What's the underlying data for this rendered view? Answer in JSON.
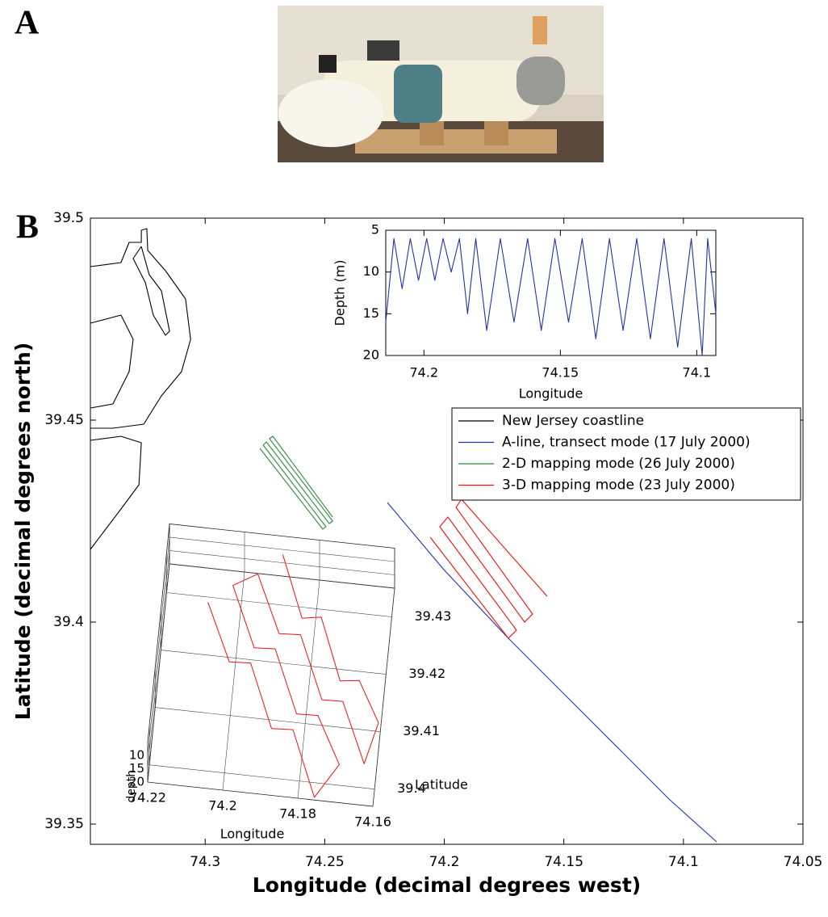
{
  "panels": {
    "a": "A",
    "b": "B"
  },
  "chart_data": [
    {
      "type": "line",
      "xlabel": "Longitude (decimal degrees west)",
      "ylabel": "Latitude (decimal degrees north)",
      "xlim": [
        74.348,
        74.05
      ],
      "ylim": [
        39.345,
        39.5
      ],
      "xticks": [
        74.3,
        74.25,
        74.2,
        74.15,
        74.1,
        74.05
      ],
      "yticks": [
        39.35,
        39.4,
        39.45,
        39.5
      ],
      "legend": "upper right",
      "series": [
        {
          "name": "New Jersey coastline",
          "color": "#000000",
          "x": [
            74.348,
            74.3352,
            74.3318,
            74.3267,
            74.3267,
            74.3244,
            74.324,
            74.3166,
            74.3082,
            74.3061,
            74.3099,
            74.3183,
            74.3257,
            74.3386,
            74.348,
            null,
            74.3267,
            74.3234,
            74.3183,
            74.3149,
            74.3166,
            74.3217,
            74.325,
            74.3301,
            74.3267,
            null,
            74.348,
            74.3352,
            74.3301,
            74.3318,
            74.3386,
            74.348,
            null,
            74.348,
            74.3352,
            74.3267,
            74.3277,
            74.3352,
            74.348
          ],
          "y": [
            39.488,
            39.489,
            39.494,
            39.494,
            39.497,
            39.4974,
            39.492,
            39.487,
            39.48,
            39.47,
            39.462,
            39.456,
            39.449,
            39.448,
            39.448,
            null,
            39.493,
            39.486,
            39.482,
            39.472,
            39.471,
            39.476,
            39.484,
            39.49,
            39.493,
            null,
            39.474,
            39.476,
            39.47,
            39.462,
            39.454,
            39.453,
            null,
            39.445,
            39.446,
            39.4444,
            39.434,
            39.428,
            39.418
          ]
        },
        {
          "name": "A-line, transect mode (17 July 2000)",
          "color": "#2233aa",
          "x": [
            74.2238,
            74.2002,
            74.1732,
            74.1496,
            74.1259,
            74.1057,
            74.0861
          ],
          "y": [
            39.4296,
            39.413,
            39.396,
            39.382,
            39.368,
            39.356,
            39.3456
          ]
        },
        {
          "name": "2-D mapping mode (26 July 2000)",
          "color": "#2e8b3e",
          "x": [
            74.2771,
            74.2508,
            74.2495,
            74.2757,
            74.2744,
            74.2481,
            74.2467,
            74.2731,
            74.2717,
            74.2467
          ],
          "y": [
            39.443,
            39.423,
            39.4236,
            39.4438,
            39.4446,
            39.4244,
            39.425,
            39.4454,
            39.446,
            39.426
          ]
        },
        {
          "name": "3-D mapping mode (23 July 2000)",
          "color": "#ee1111",
          "x": [
            74.2059,
            74.1732,
            74.1698,
            74.2019,
            74.1985,
            74.1664,
            74.1631,
            74.1951,
            74.1928,
            74.157
          ],
          "y": [
            39.421,
            39.396,
            39.398,
            39.4236,
            39.426,
            39.4,
            39.402,
            39.4284,
            39.4304,
            39.4064
          ]
        }
      ]
    },
    {
      "type": "line",
      "xlabel": "Longitude",
      "ylabel": "Depth (m)",
      "xlim": [
        74.214,
        74.093
      ],
      "ylim": [
        20,
        5
      ],
      "xticks": [
        74.2,
        74.15,
        74.1
      ],
      "yticks": [
        5,
        10,
        15,
        20
      ],
      "series": [
        {
          "color": "#2233aa",
          "x": [
            74.214,
            74.211,
            74.208,
            74.205,
            74.202,
            74.199,
            74.196,
            74.193,
            74.19,
            74.187,
            74.184,
            74.181,
            74.177,
            74.172,
            74.167,
            74.162,
            74.157,
            74.152,
            74.147,
            74.142,
            74.137,
            74.132,
            74.127,
            74.122,
            74.117,
            74.112,
            74.107,
            74.102,
            74.098,
            74.096,
            74.093
          ],
          "y": [
            16,
            6,
            12,
            6,
            11,
            6,
            11,
            6,
            10,
            6,
            15,
            6,
            17,
            6,
            16,
            6,
            17,
            6,
            16,
            6,
            18,
            6,
            17,
            6,
            18,
            6,
            19,
            6,
            20,
            6,
            15
          ]
        }
      ]
    },
    {
      "type": "line3d",
      "xlabel": "Longitude",
      "ylabel": "Latitude",
      "zlabel": "depth",
      "xlim": [
        74.22,
        74.16
      ],
      "ylim": [
        39.397,
        39.435
      ],
      "zlim": [
        20,
        5
      ],
      "xticks": [
        74.22,
        74.2,
        74.18,
        74.16
      ],
      "yticks": [
        39.4,
        39.41,
        39.42,
        39.43
      ],
      "zticks": [
        10,
        15,
        20
      ],
      "series": [
        {
          "color": "#ee1111",
          "x": [
            74.208,
            74.2015,
            74.195,
            74.1886,
            74.1821,
            74.1756,
            74.1694,
            74.1759,
            74.1824,
            74.1889,
            74.1953,
            74.2018,
            74.1956,
            74.1891,
            74.1826,
            74.1761,
            74.1697,
            74.1632,
            74.16,
            74.1659,
            74.1718,
            74.1776,
            74.1835,
            74.1894
          ],
          "y": [
            39.4236,
            39.4183,
            39.413,
            39.4076,
            39.4023,
            39.397,
            39.3999,
            39.4052,
            39.4106,
            39.4159,
            39.4212,
            39.4265,
            39.4294,
            39.4241,
            39.4188,
            39.4135,
            39.4081,
            39.4028,
            39.4069,
            39.412,
            39.4171,
            39.4222,
            39.4272,
            39.4323
          ],
          "z": [
            8,
            18,
            6,
            18,
            6,
            19,
            12,
            6,
            18,
            6,
            18,
            7,
            8,
            18,
            6,
            18,
            6,
            17,
            10,
            6,
            18,
            6,
            18,
            6
          ]
        }
      ]
    }
  ]
}
